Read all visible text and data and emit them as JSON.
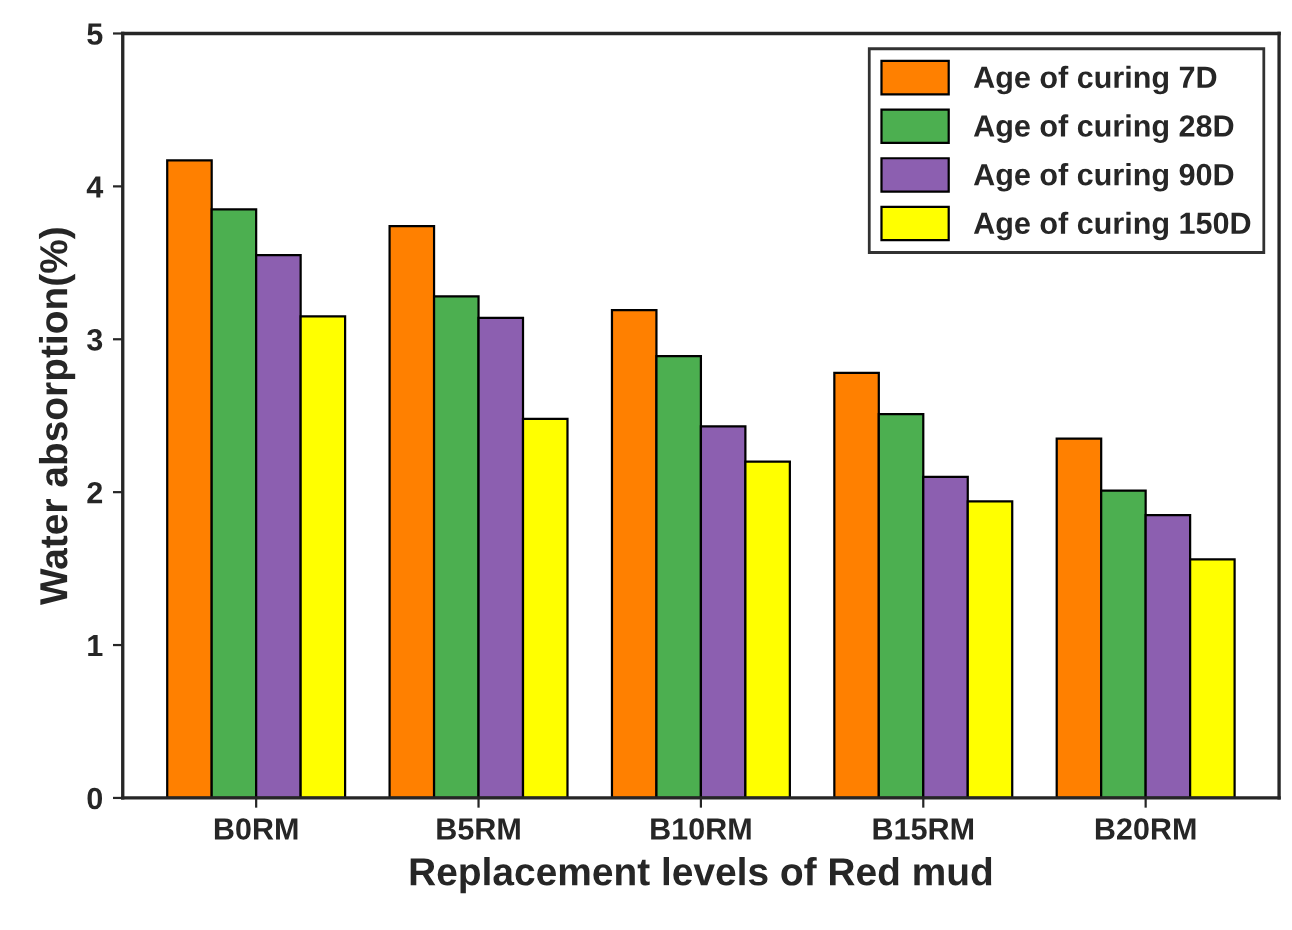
{
  "chart_data": {
    "type": "bar",
    "xlabel": "Replacement levels of Red mud",
    "ylabel": "Water absorption(%)",
    "categories": [
      "B0RM",
      "B5RM",
      "B10RM",
      "B15RM",
      "B20RM"
    ],
    "series": [
      {
        "name": "Age of curing 7D",
        "color": "#ff8000",
        "values": [
          4.17,
          3.74,
          3.19,
          2.78,
          2.35
        ]
      },
      {
        "name": "Age of curing 28D",
        "color": "#4caf50",
        "values": [
          3.85,
          3.28,
          2.89,
          2.51,
          2.01
        ]
      },
      {
        "name": "Age of curing 90D",
        "color": "#8c5fb0",
        "values": [
          3.55,
          3.14,
          2.43,
          2.1,
          1.85
        ]
      },
      {
        "name": "Age of curing 150D",
        "color": "#ffff00",
        "values": [
          3.15,
          2.48,
          2.2,
          1.94,
          1.56
        ]
      }
    ],
    "ylim": [
      0,
      5
    ],
    "yticks": [
      0,
      1,
      2,
      3,
      4,
      5
    ],
    "grid": false,
    "legend": "top right"
  }
}
